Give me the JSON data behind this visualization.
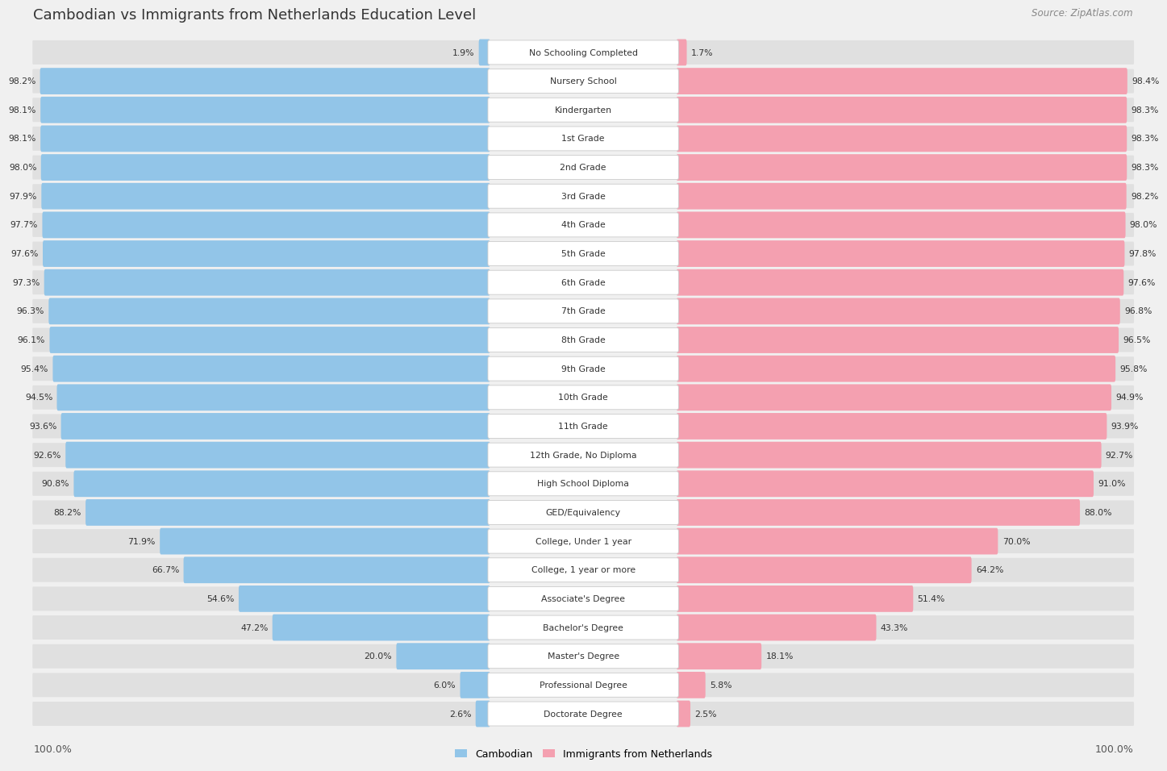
{
  "title": "Cambodian vs Immigrants from Netherlands Education Level",
  "source": "Source: ZipAtlas.com",
  "categories": [
    "No Schooling Completed",
    "Nursery School",
    "Kindergarten",
    "1st Grade",
    "2nd Grade",
    "3rd Grade",
    "4th Grade",
    "5th Grade",
    "6th Grade",
    "7th Grade",
    "8th Grade",
    "9th Grade",
    "10th Grade",
    "11th Grade",
    "12th Grade, No Diploma",
    "High School Diploma",
    "GED/Equivalency",
    "College, Under 1 year",
    "College, 1 year or more",
    "Associate's Degree",
    "Bachelor's Degree",
    "Master's Degree",
    "Professional Degree",
    "Doctorate Degree"
  ],
  "cambodian": [
    1.9,
    98.2,
    98.1,
    98.1,
    98.0,
    97.9,
    97.7,
    97.6,
    97.3,
    96.3,
    96.1,
    95.4,
    94.5,
    93.6,
    92.6,
    90.8,
    88.2,
    71.9,
    66.7,
    54.6,
    47.2,
    20.0,
    6.0,
    2.6
  ],
  "netherlands": [
    1.7,
    98.4,
    98.3,
    98.3,
    98.3,
    98.2,
    98.0,
    97.8,
    97.6,
    96.8,
    96.5,
    95.8,
    94.9,
    93.9,
    92.7,
    91.0,
    88.0,
    70.0,
    64.2,
    51.4,
    43.3,
    18.1,
    5.8,
    2.5
  ],
  "cambodian_color": "#92C5E8",
  "netherlands_color": "#F4A0B0",
  "bg_color": "#f0f0f0",
  "row_bg_color": "#e0e0e0",
  "label_bg_color": "#ffffff",
  "legend_cambodian": "Cambodian",
  "legend_netherlands": "Immigrants from Netherlands",
  "axis_label_left": "100.0%",
  "axis_label_right": "100.0%",
  "title_fontsize": 13,
  "label_fontsize": 7.8,
  "value_fontsize": 7.8
}
